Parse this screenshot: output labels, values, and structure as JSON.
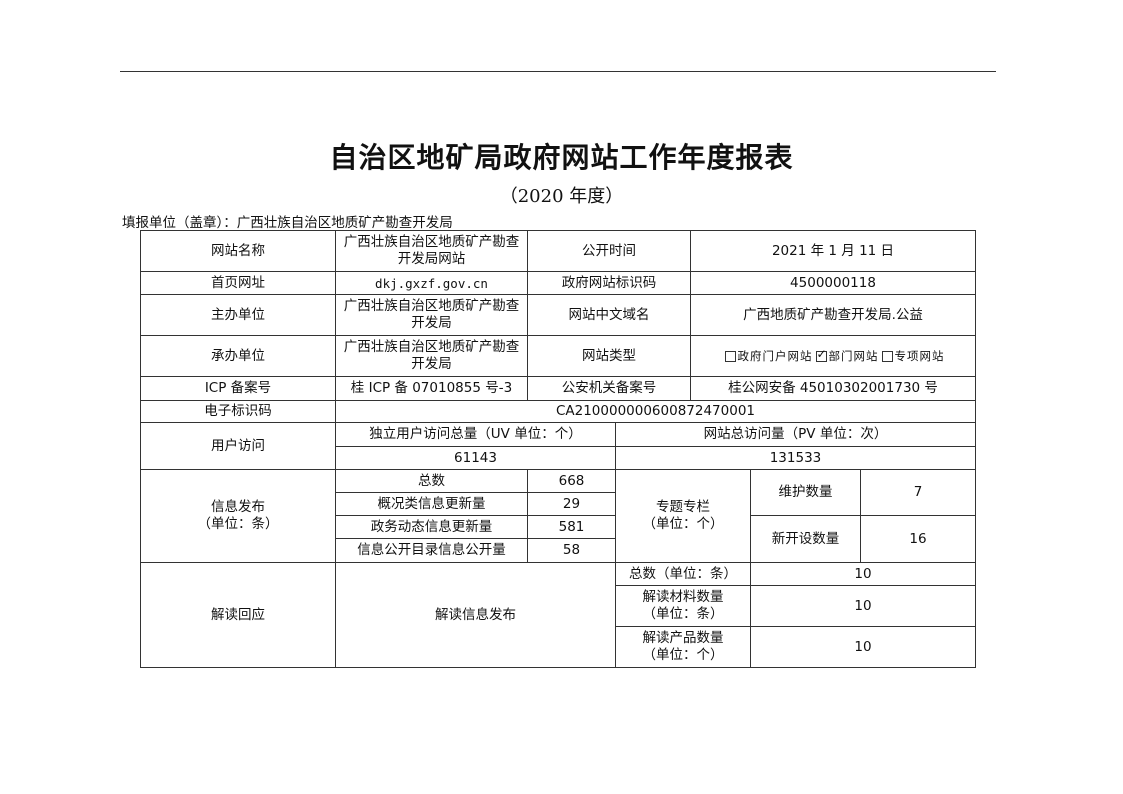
{
  "title": "自治区地矿局政府网站工作年度报表",
  "subtitle": "（2020 年度）",
  "filler": "填报单位（盖章）：广西壮族自治区地质矿产勘查开发局",
  "rows": {
    "site_name_label": "网站名称",
    "site_name": "广西壮族自治区地质矿产勘查开发局网站",
    "publish_time_label": "公开时间",
    "publish_time": "2021 年 1 月 11 日",
    "homepage_label": "首页网址",
    "homepage": "dkj.gxzf.gov.cn",
    "site_id_label": "政府网站标识码",
    "site_id": "4500000118",
    "host_label": "主办单位",
    "host": "广西壮族自治区地质矿产勘查开发局",
    "cn_domain_label": "网站中文域名",
    "cn_domain": "广西地质矿产勘查开发局.公益",
    "organizer_label": "承办单位",
    "organizer": "广西壮族自治区地质矿产勘查开发局",
    "site_type_label": "网站类型",
    "site_types": [
      {
        "label": "政府门户网站",
        "checked": false
      },
      {
        "label": "部门网站",
        "checked": true
      },
      {
        "label": "专项网站",
        "checked": false
      }
    ],
    "icp_label": "ICP 备案号",
    "icp": "桂 ICP 备 07010855 号-3",
    "police_label": "公安机关备案号",
    "police": "桂公网安备 45010302001730 号",
    "eid_label": "电子标识码",
    "eid": "CA210000000600872470001",
    "visits_label": "用户访问",
    "uv_label": "独立用户访问总量（UV 单位：个）",
    "uv": "61143",
    "pv_label": "网站总访问量（PV 单位：次）",
    "pv": "131533",
    "info_label": "信息发布\n（单位：条）",
    "info": [
      {
        "label": "总数",
        "value": "668"
      },
      {
        "label": "概况类信息更新量",
        "value": "29"
      },
      {
        "label": "政务动态信息更新量",
        "value": "581"
      },
      {
        "label": "信息公开目录信息公开量",
        "value": "58"
      }
    ],
    "column_label": "专题专栏\n（单位：个）",
    "maintain_label": "维护数量",
    "maintain": "7",
    "new_label": "新开设数量",
    "new": "16",
    "interp_label": "解读回应",
    "interp_pub_label": "解读信息发布",
    "interp": [
      {
        "label": "总数（单位：条）",
        "value": "10"
      },
      {
        "label": "解读材料数量\n（单位：条）",
        "value": "10"
      },
      {
        "label": "解读产品数量\n（单位：个）",
        "value": "10"
      }
    ]
  }
}
